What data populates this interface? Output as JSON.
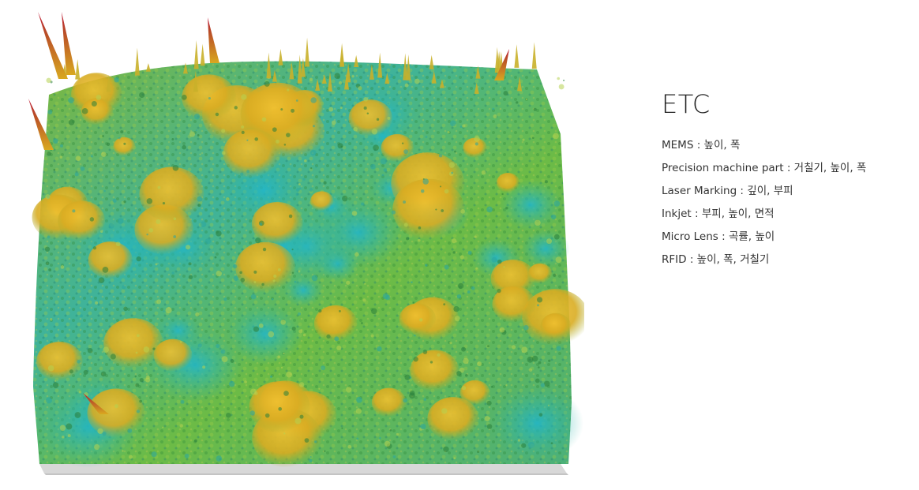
{
  "section": {
    "title": "ETC"
  },
  "applications": [
    {
      "name": "MEMS",
      "measurements": "높이, 폭"
    },
    {
      "name": "Precision machine part",
      "measurements": "거칠기, 높이, 폭"
    },
    {
      "name": "Laser Marking",
      "measurements": "깊이, 부피"
    },
    {
      "name": "Inkjet",
      "measurements": "부피, 높이, 면적"
    },
    {
      "name": "Micro Lens",
      "measurements": "곡률, 높이"
    },
    {
      "name": "RFID",
      "measurements": "높이, 폭, 거칠기"
    }
  ],
  "separator": " : ",
  "colors": {
    "surface_low": "#22b4c8",
    "surface_mid": "#5cb84a",
    "surface_high": "#e0b020",
    "peak": "#c02030",
    "base": "#dcdcdc"
  }
}
